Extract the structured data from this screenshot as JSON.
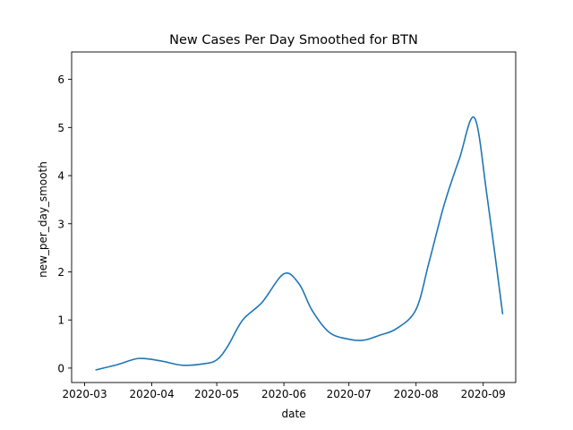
{
  "chart_data": {
    "type": "line",
    "title": "New Cases Per Day Smoothed for BTN",
    "xlabel": "date",
    "ylabel": "new_per_day_smooth",
    "xlim": [
      "2020-02-24",
      "2020-09-16"
    ],
    "ylim": [
      -0.3,
      6.57
    ],
    "x_ticks": [
      "2020-03-01",
      "2020-04-01",
      "2020-05-01",
      "2020-06-01",
      "2020-07-01",
      "2020-08-01",
      "2020-09-01"
    ],
    "x_tick_labels": [
      "2020-03",
      "2020-04",
      "2020-05",
      "2020-06",
      "2020-07",
      "2020-08",
      "2020-09"
    ],
    "y_ticks": [
      0,
      1,
      2,
      3,
      4,
      5,
      6
    ],
    "y_tick_labels": [
      "0",
      "1",
      "2",
      "3",
      "4",
      "5",
      "6"
    ],
    "grid": false,
    "series": [
      {
        "color": "#1f77b4",
        "x": [
          "2020-03-06",
          "2020-03-16",
          "2020-03-26",
          "2020-04-05",
          "2020-04-15",
          "2020-04-25",
          "2020-05-01",
          "2020-05-06",
          "2020-05-13",
          "2020-05-22",
          "2020-06-01",
          "2020-06-08",
          "2020-06-14",
          "2020-06-22",
          "2020-07-01",
          "2020-07-08",
          "2020-07-15",
          "2020-07-23",
          "2020-08-01",
          "2020-08-07",
          "2020-08-14",
          "2020-08-21",
          "2020-08-28",
          "2020-09-03",
          "2020-09-10"
        ],
        "y": [
          -0.04,
          0.07,
          0.2,
          0.15,
          0.06,
          0.09,
          0.17,
          0.45,
          1.0,
          1.37,
          1.96,
          1.75,
          1.2,
          0.74,
          0.6,
          0.58,
          0.68,
          0.82,
          1.22,
          2.2,
          3.4,
          4.35,
          5.2,
          3.5,
          1.12
        ]
      }
    ]
  }
}
